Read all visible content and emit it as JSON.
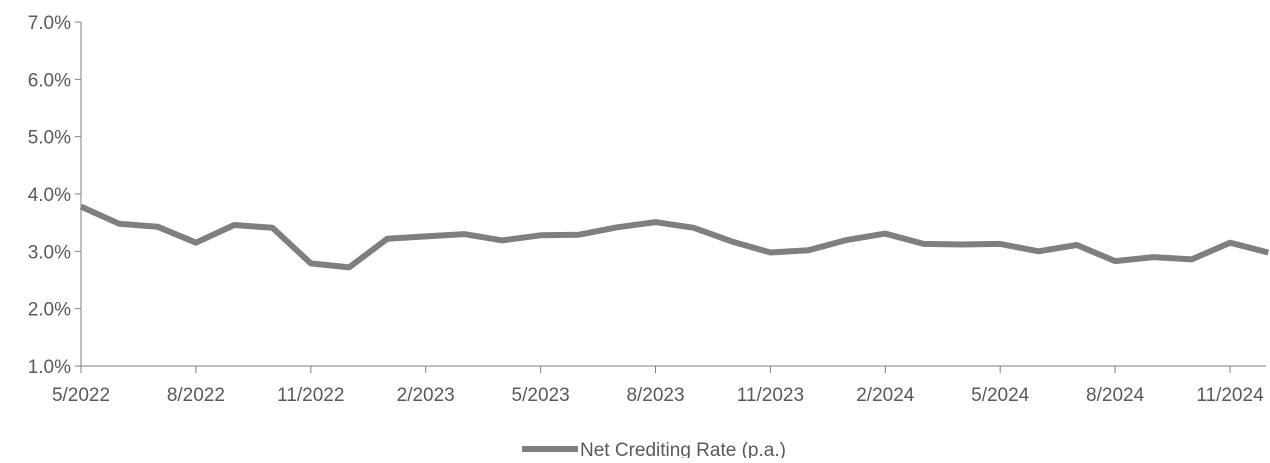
{
  "colors": {
    "series": "#7f7f7f",
    "axis": "#7f7f7f",
    "text": "#595959",
    "background": "#ffffff"
  },
  "chart_data": {
    "type": "line",
    "title": "",
    "xlabel": "",
    "ylabel": "",
    "ylim": [
      0.01,
      0.07
    ],
    "yticks": [
      {
        "value": 0.07,
        "label": "7.0%"
      },
      {
        "value": 0.06,
        "label": "6.0%"
      },
      {
        "value": 0.05,
        "label": "5.0%"
      },
      {
        "value": 0.04,
        "label": "4.0%"
      },
      {
        "value": 0.03,
        "label": "3.0%"
      },
      {
        "value": 0.02,
        "label": "2.0%"
      },
      {
        "value": 0.01,
        "label": "1.0%"
      }
    ],
    "xticks": [
      {
        "index": 0,
        "label": "5/2022"
      },
      {
        "index": 3,
        "label": "8/2022"
      },
      {
        "index": 6,
        "label": "11/2022"
      },
      {
        "index": 9,
        "label": "2/2023"
      },
      {
        "index": 12,
        "label": "5/2023"
      },
      {
        "index": 15,
        "label": "8/2023"
      },
      {
        "index": 18,
        "label": "11/2023"
      },
      {
        "index": 21,
        "label": "2/2024"
      },
      {
        "index": 24,
        "label": "5/2024"
      },
      {
        "index": 27,
        "label": "8/2024"
      },
      {
        "index": 30,
        "label": "11/2024"
      }
    ],
    "grid": false,
    "legend_position": "bottom",
    "x": [
      "5/2022",
      "6/2022",
      "7/2022",
      "8/2022",
      "9/2022",
      "10/2022",
      "11/2022",
      "12/2022",
      "1/2023",
      "2/2023",
      "3/2023",
      "4/2023",
      "5/2023",
      "6/2023",
      "7/2023",
      "8/2023",
      "9/2023",
      "10/2023",
      "11/2023",
      "12/2023",
      "1/2024",
      "2/2024",
      "3/2024",
      "4/2024",
      "5/2024",
      "6/2024",
      "7/2024",
      "8/2024",
      "9/2024",
      "10/2024",
      "11/2024",
      "12/2024"
    ],
    "series": [
      {
        "name": "Net Crediting Rate (p.a.)",
        "values": [
          0.0378,
          0.0348,
          0.0343,
          0.0315,
          0.0346,
          0.0341,
          0.0279,
          0.0272,
          0.0322,
          0.0326,
          0.033,
          0.0319,
          0.0328,
          0.0329,
          0.0342,
          0.0351,
          0.0341,
          0.0317,
          0.0298,
          0.0302,
          0.032,
          0.0331,
          0.0313,
          0.0312,
          0.0313,
          0.03,
          0.0311,
          0.0283,
          0.029,
          0.0286,
          0.0315,
          0.0298
        ]
      }
    ]
  }
}
